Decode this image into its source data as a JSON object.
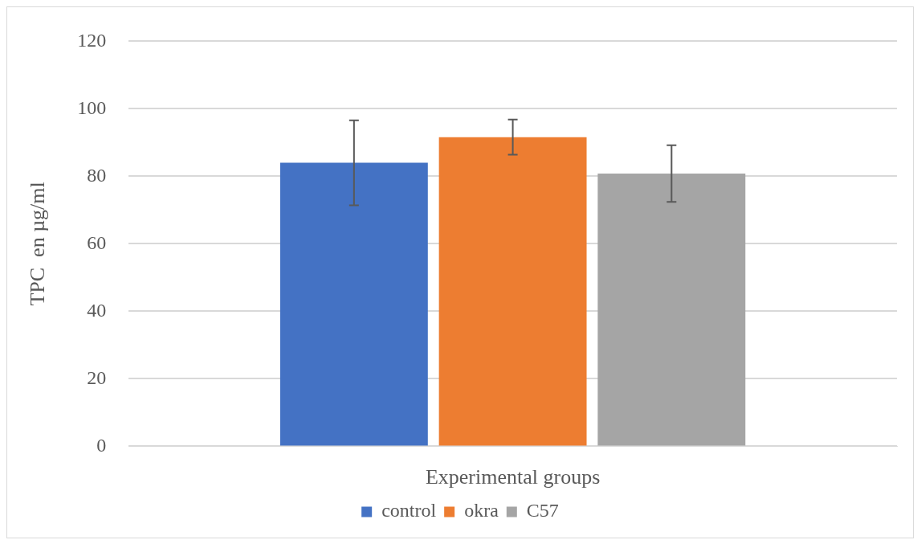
{
  "chart_data": {
    "type": "bar",
    "categories": [
      null
    ],
    "xlabel": "Experimental groups",
    "ylabel": "TPC  en µg/ml",
    "series": [
      {
        "name": "control",
        "color": "#4472c4",
        "values": [
          84.0
        ],
        "errors": [
          12.6
        ]
      },
      {
        "name": "okra",
        "color": "#ed7d31",
        "values": [
          91.6
        ],
        "errors": [
          5.2
        ]
      },
      {
        "name": "C57",
        "color": "#a5a5a5",
        "values": [
          80.8
        ],
        "errors": [
          8.4
        ]
      }
    ],
    "ylim": [
      0,
      120
    ],
    "yticks": [
      0,
      20,
      40,
      60,
      80,
      100,
      120
    ],
    "grid": "y",
    "legend": "bottom"
  }
}
